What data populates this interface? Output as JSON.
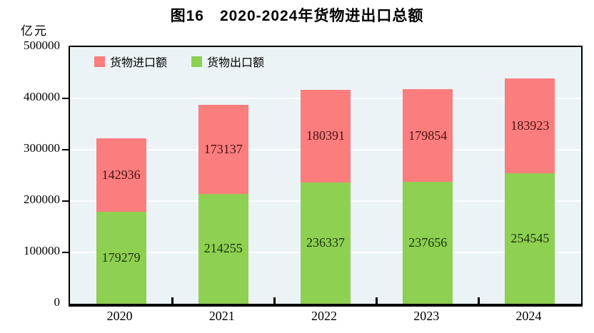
{
  "title": "图16　2020-2024年货物进出口总额",
  "unit_label": "亿元",
  "legend": {
    "items": [
      {
        "label": "货物进口额",
        "series": "import"
      },
      {
        "label": "货物出口额",
        "series": "export"
      }
    ]
  },
  "colors": {
    "import_bar": "#fb7d7d",
    "export_bar": "#8ed052",
    "import_label_text": "#4a1414",
    "export_label_text": "#1c3311",
    "plot_background": "#ebf3f7",
    "gridline": "#ffffff",
    "axis": "#000000",
    "text": "#000000"
  },
  "chart_data": {
    "type": "bar",
    "stacked": true,
    "title": "图16　2020-2024年货物进出口总额",
    "xlabel": "",
    "ylabel": "亿元",
    "categories": [
      "2020",
      "2021",
      "2022",
      "2023",
      "2024"
    ],
    "series": [
      {
        "name": "货物出口额",
        "key": "export",
        "values": [
          179279,
          214255,
          236337,
          237656,
          254545
        ]
      },
      {
        "name": "货物进口额",
        "key": "import",
        "values": [
          142936,
          173137,
          180391,
          179854,
          183923
        ]
      }
    ],
    "ylim": [
      0,
      500000
    ],
    "ytick_step": 100000,
    "ytick_labels": [
      "0",
      "100000",
      "200000",
      "300000",
      "400000",
      "500000"
    ],
    "grid": true,
    "legend_position": "top-left-inside"
  }
}
